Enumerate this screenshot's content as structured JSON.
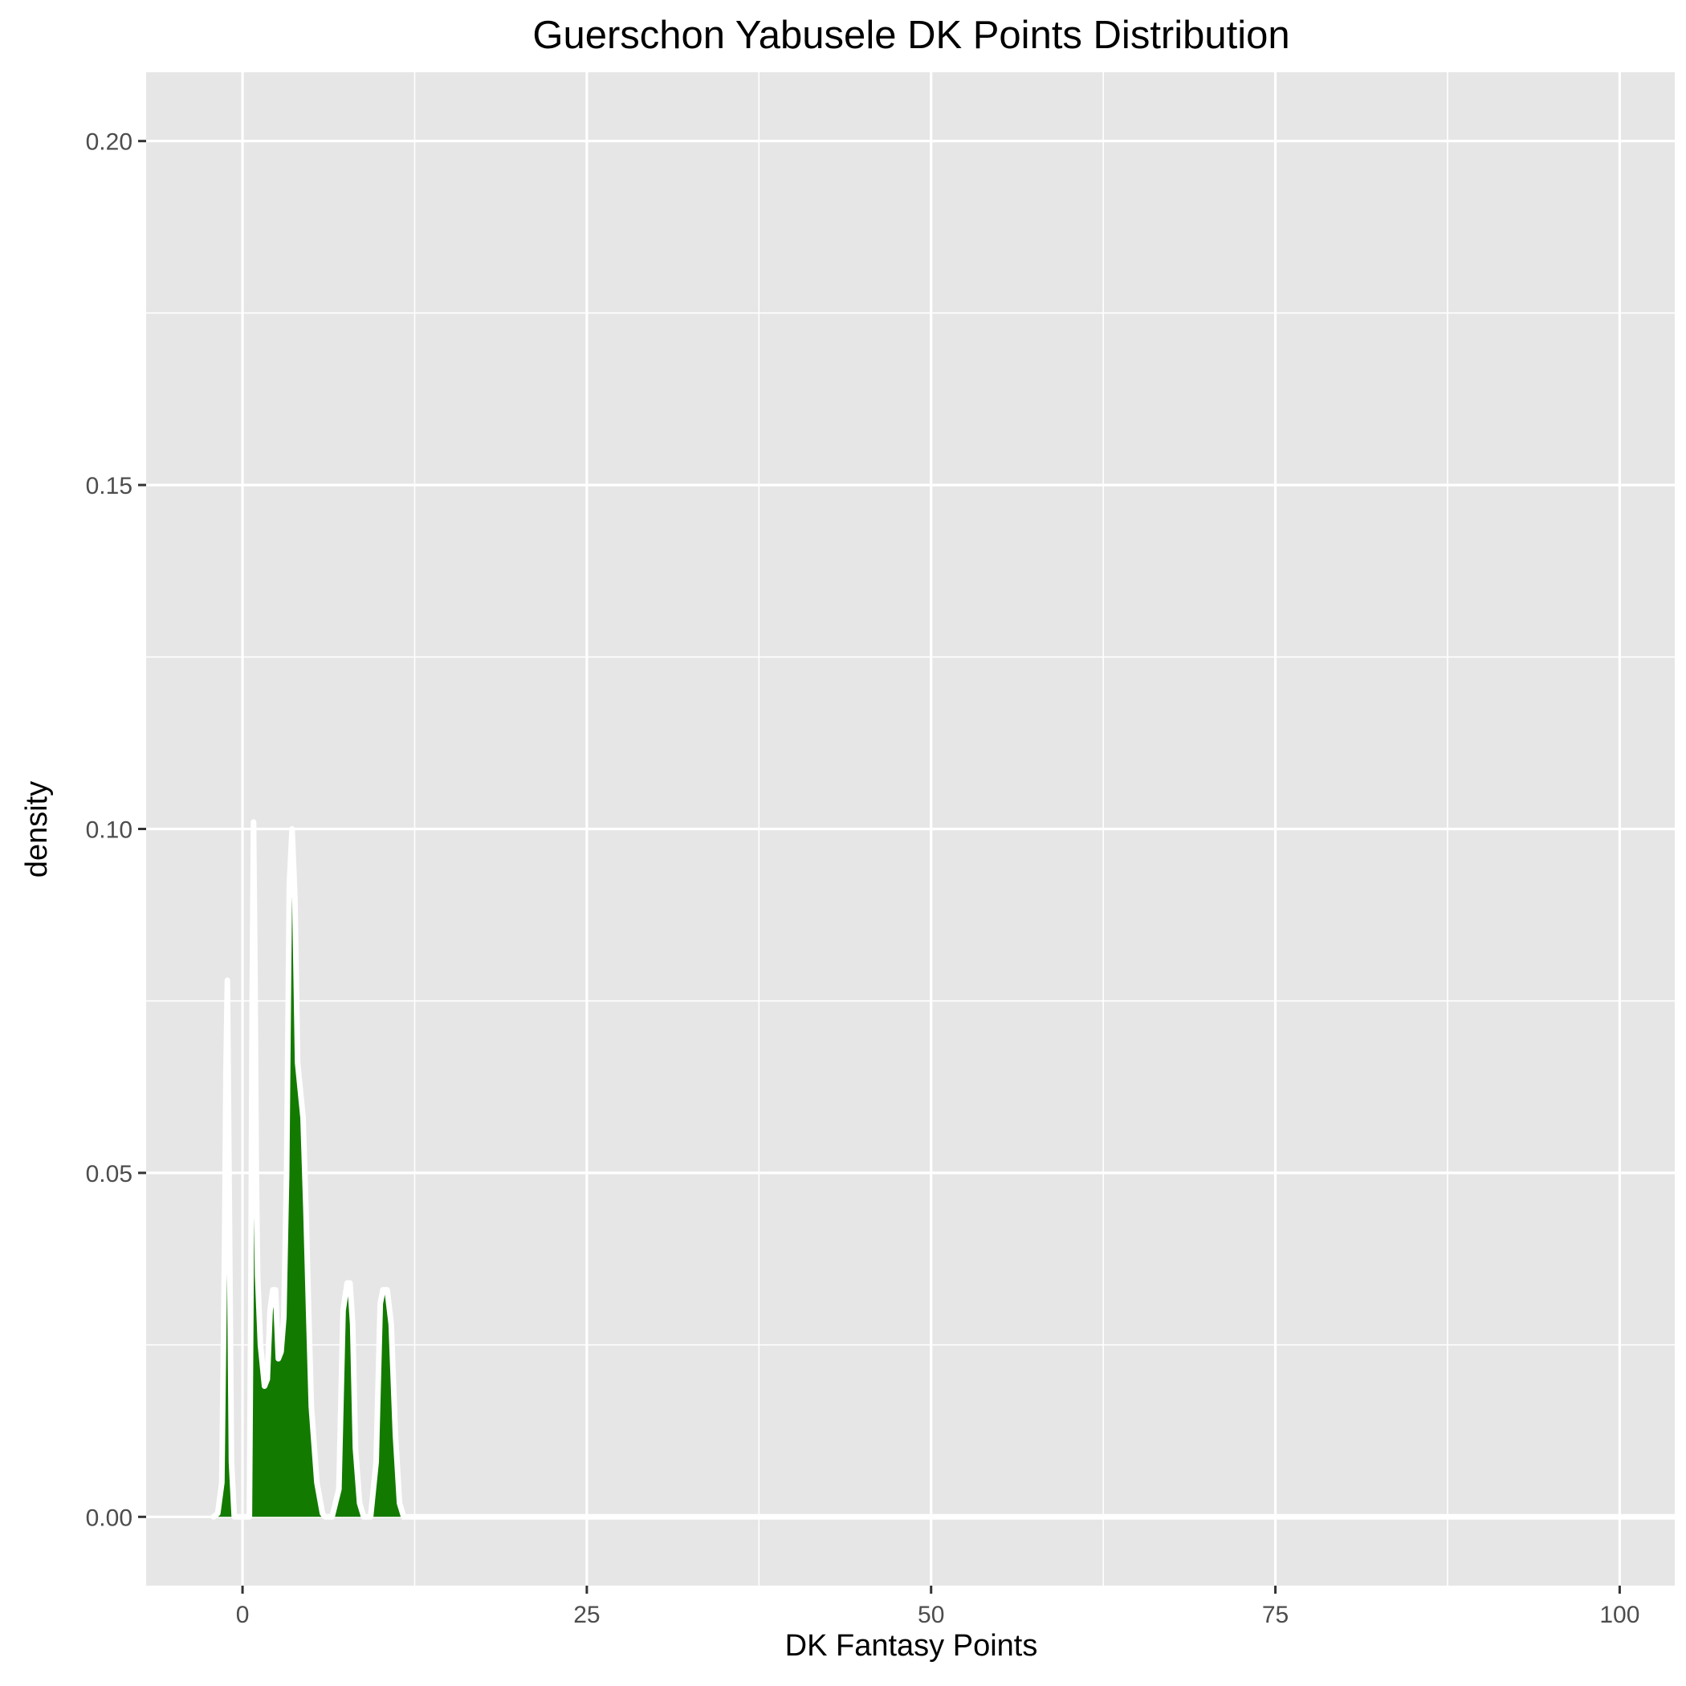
{
  "chart_data": {
    "type": "area",
    "title": "Guerschon Yabusele DK Points Distribution",
    "xlabel": "DK Fantasy Points",
    "ylabel": "density",
    "xlim": [
      -7,
      104
    ],
    "ylim": [
      -0.01,
      0.21
    ],
    "x_ticks": [
      0,
      25,
      50,
      75,
      100
    ],
    "x_tick_labels": [
      "0",
      "25",
      "50",
      "75",
      "100"
    ],
    "y_ticks": [
      0.0,
      0.05,
      0.1,
      0.15,
      0.2
    ],
    "y_tick_labels": [
      "0.00",
      "0.05",
      "0.10",
      "0.15",
      "0.20"
    ],
    "grid": true,
    "panel_background": "#e6e6e6",
    "fill_color": "#137a00",
    "outline_color": "#ffffff",
    "series": [
      {
        "x": [
          -2.1,
          -1.8,
          -1.5,
          -1.3,
          -1.2,
          -1.1,
          -1.0,
          -0.8,
          -0.6,
          0.5,
          0.6,
          0.7,
          0.8,
          0.9,
          1.0,
          1.1,
          1.3,
          1.6,
          1.8,
          2.0,
          2.2,
          2.4,
          2.6,
          2.8,
          3.0,
          3.2,
          3.4,
          3.6,
          3.8,
          4.0,
          4.2,
          4.4,
          4.6,
          4.8,
          5.0,
          5.4,
          5.8,
          6.0,
          6.5,
          7.0,
          7.3,
          7.6,
          7.8,
          8.0,
          8.2,
          8.5,
          8.8,
          9.3,
          9.7,
          10.0,
          10.2,
          10.5,
          10.8,
          11.1,
          11.4,
          11.7,
          12.0,
          104.0
        ],
        "y": [
          0.0,
          0.0005,
          0.005,
          0.04,
          0.065,
          0.078,
          0.055,
          0.008,
          0.0,
          0.0,
          0.03,
          0.075,
          0.101,
          0.08,
          0.05,
          0.035,
          0.025,
          0.019,
          0.02,
          0.03,
          0.033,
          0.033,
          0.023,
          0.024,
          0.029,
          0.05,
          0.092,
          0.1,
          0.09,
          0.066,
          0.062,
          0.058,
          0.045,
          0.03,
          0.016,
          0.005,
          0.0005,
          0.0,
          0.0,
          0.004,
          0.03,
          0.034,
          0.034,
          0.028,
          0.01,
          0.002,
          0.0,
          0.0,
          0.008,
          0.031,
          0.033,
          0.033,
          0.028,
          0.012,
          0.002,
          0.0,
          0.0,
          0.0
        ]
      }
    ]
  }
}
